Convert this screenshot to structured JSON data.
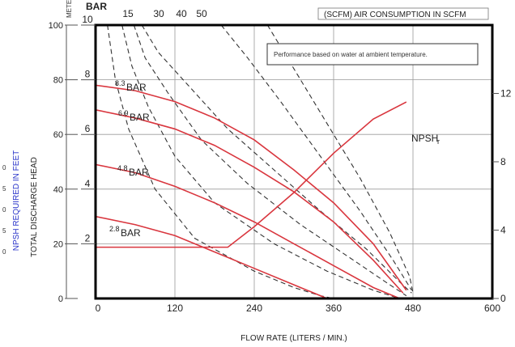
{
  "chart_data": {
    "type": "line",
    "title": "",
    "xlabel": "FLOW RATE (LITERS / MIN.)",
    "x_ticks": [
      "0",
      "120",
      "240",
      "360",
      "480",
      "600"
    ],
    "xlim": [
      0,
      600
    ],
    "ylabel_left_feet": "TOTAL DISCHARGE HEAD",
    "ylabel_left_npsh": "NPSH REQUIRED IN FEET",
    "left_feet_ticks": [
      "0",
      "20",
      "40",
      "60",
      "80",
      "100"
    ],
    "left_feet_lim": [
      0,
      100
    ],
    "left_meter_label": "METE",
    "left_bar_label": "BAR",
    "left_bar_ticks": [
      "2",
      "4",
      "6",
      "8",
      "10"
    ],
    "right_npsh_ticks": [
      "0",
      "4",
      "8",
      "12"
    ],
    "npsh_lim": [
      0,
      16
    ],
    "npsh_left_partial_ticks": [
      "0",
      "5",
      "0",
      "5",
      "0"
    ],
    "air_header": "(SCFM) AIR CONSUMPTION IN SCFM",
    "air_ticks": [
      "15",
      "30",
      "40",
      "50"
    ],
    "note": "Performance based on water at ambient temperature.",
    "series": [
      {
        "name": "8.3 BAR",
        "label_value": "8.3",
        "label_unit": "BAR",
        "color": "#d9363e",
        "x": [
          0,
          60,
          120,
          180,
          240,
          300,
          360,
          420,
          470
        ],
        "y": [
          78,
          76,
          72,
          66,
          58,
          47,
          35,
          20,
          3
        ]
      },
      {
        "name": "6.9 BAR",
        "label_value": "6.9",
        "label_unit": "BAR",
        "color": "#d9363e",
        "x": [
          0,
          60,
          120,
          180,
          240,
          300,
          360,
          420,
          465
        ],
        "y": [
          69,
          66,
          62,
          56,
          48,
          39,
          28,
          14,
          2
        ]
      },
      {
        "name": "4.8 BAR",
        "label_value": "4.8",
        "label_unit": "BAR",
        "color": "#d9363e",
        "x": [
          0,
          60,
          120,
          180,
          240,
          300,
          360,
          420,
          460
        ],
        "y": [
          49,
          46,
          41,
          35,
          28,
          20,
          12,
          4,
          0
        ]
      },
      {
        "name": "2.8 BAR",
        "label_value": "2.8",
        "label_unit": "BAR",
        "color": "#d9363e",
        "x": [
          0,
          60,
          120,
          180,
          240,
          300,
          350
        ],
        "y": [
          30,
          27,
          23,
          17,
          11,
          5,
          0
        ]
      },
      {
        "name": "NPSH r",
        "label_value": "NPSH",
        "label_unit": "r",
        "color": "#d9363e",
        "axis": "npsh",
        "x": [
          0,
          200,
          240,
          300,
          360,
          420,
          470
        ],
        "y": [
          3,
          3,
          4.2,
          6.2,
          8.5,
          10.5,
          11.5
        ]
      }
    ],
    "air_curves": [
      {
        "label": "15",
        "x": [
          18,
          30,
          50,
          90,
          150,
          240,
          300,
          340,
          360
        ],
        "y": [
          100,
          80,
          62,
          40,
          22,
          10,
          4,
          1,
          0
        ]
      },
      {
        "label": "30",
        "x": [
          40,
          55,
          80,
          120,
          180,
          270,
          350,
          420,
          460
        ],
        "y": [
          100,
          85,
          70,
          52,
          35,
          20,
          10,
          3,
          0
        ]
      },
      {
        "label": "40",
        "x": [
          58,
          75,
          110,
          160,
          230,
          310,
          390,
          445,
          470
        ],
        "y": [
          100,
          88,
          75,
          58,
          42,
          27,
          14,
          5,
          1
        ]
      },
      {
        "label": "50",
        "x": [
          70,
          95,
          140,
          200,
          270,
          340,
          410,
          460,
          478
        ],
        "y": [
          100,
          90,
          78,
          62,
          47,
          32,
          18,
          6,
          2
        ]
      },
      {
        "label": "",
        "x": [
          190,
          230,
          280,
          340,
          400,
          450,
          478
        ],
        "y": [
          100,
          88,
          72,
          52,
          32,
          14,
          3
        ]
      },
      {
        "label": "",
        "x": [
          260,
          300,
          350,
          400,
          445,
          475,
          480
        ],
        "y": [
          100,
          84,
          64,
          44,
          24,
          8,
          2
        ]
      }
    ],
    "grid": true,
    "legend": "inline labels"
  }
}
